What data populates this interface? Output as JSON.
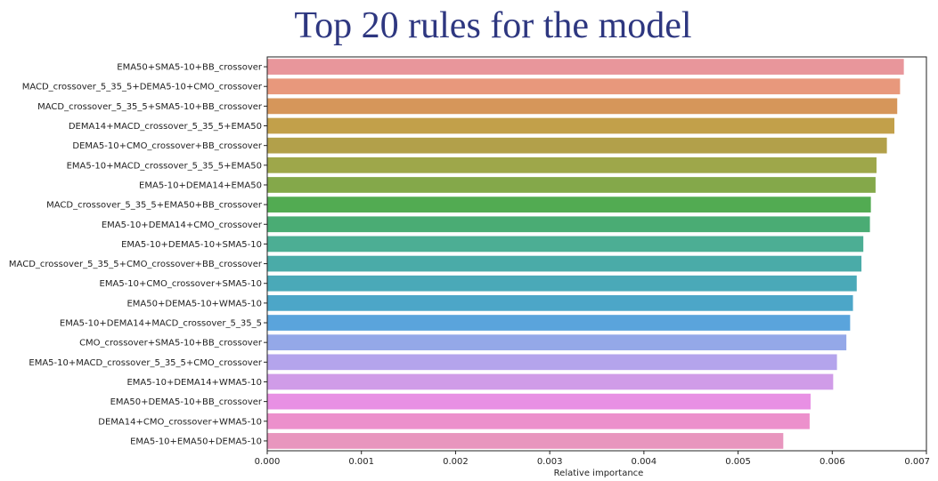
{
  "title": "Top 20 rules for the model",
  "chart_data": {
    "type": "bar",
    "orientation": "horizontal",
    "title": "Top 20 rules for the model",
    "xlabel": "Relative importance",
    "ylabel": "",
    "xlim": [
      0,
      0.007
    ],
    "xticks": [
      "0.000",
      "0.001",
      "0.002",
      "0.003",
      "0.004",
      "0.005",
      "0.006",
      "0.007"
    ],
    "grid": false,
    "legend": "none",
    "categories": [
      "EMA50+SMA5-10+BB_crossover",
      "MACD_crossover_5_35_5+DEMA5-10+CMO_crossover",
      "MACD_crossover_5_35_5+SMA5-10+BB_crossover",
      "DEMA14+MACD_crossover_5_35_5+EMA50",
      "DEMA5-10+CMO_crossover+BB_crossover",
      "EMA5-10+MACD_crossover_5_35_5+EMA50",
      "EMA5-10+DEMA14+EMA50",
      "MACD_crossover_5_35_5+EMA50+BB_crossover",
      "EMA5-10+DEMA14+CMO_crossover",
      "EMA5-10+DEMA5-10+SMA5-10",
      "MACD_crossover_5_35_5+CMO_crossover+BB_crossover",
      "EMA5-10+CMO_crossover+SMA5-10",
      "EMA50+DEMA5-10+WMA5-10",
      "EMA5-10+DEMA14+MACD_crossover_5_35_5",
      "CMO_crossover+SMA5-10+BB_crossover",
      "EMA5-10+MACD_crossover_5_35_5+CMO_crossover",
      "EMA5-10+DEMA14+WMA5-10",
      "EMA50+DEMA5-10+BB_crossover",
      "DEMA14+CMO_crossover+WMA5-10",
      "EMA5-10+EMA50+DEMA5-10"
    ],
    "values": [
      0.00676,
      0.00672,
      0.00669,
      0.00666,
      0.00658,
      0.00647,
      0.00646,
      0.00641,
      0.0064,
      0.00633,
      0.00631,
      0.00626,
      0.00622,
      0.00619,
      0.00615,
      0.00605,
      0.00601,
      0.00577,
      0.00576,
      0.00548
    ],
    "colors": [
      "#e8969b",
      "#e8987c",
      "#d6965a",
      "#c2a04a",
      "#b2a04a",
      "#9ea74a",
      "#84a84a",
      "#52ab52",
      "#4aac74",
      "#4cae94",
      "#4aaba8",
      "#4aa9b8",
      "#4ca6c8",
      "#5aa4dc",
      "#94a8e8",
      "#b4a4ec",
      "#d09ce8",
      "#e890e4",
      "#ec90cc",
      "#e896be"
    ]
  }
}
